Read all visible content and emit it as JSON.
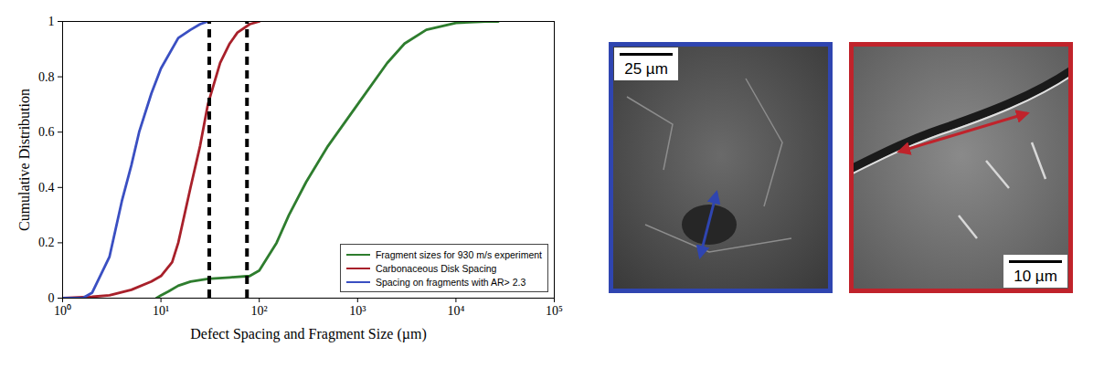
{
  "chart_data": {
    "type": "line",
    "x_label": "Defect Spacing and Fragment Size (µm)",
    "y_label": "Cumulative Distribution",
    "log": "x",
    "xlim": [
      1,
      100000
    ],
    "xticks": [
      {
        "value": 1,
        "label": "10⁰"
      },
      {
        "value": 10,
        "label": "10¹"
      },
      {
        "value": 100,
        "label": "10²"
      },
      {
        "value": 1000,
        "label": "10³"
      },
      {
        "value": 10000,
        "label": "10⁴"
      },
      {
        "value": 100000,
        "label": "10⁵"
      }
    ],
    "ylim": [
      0,
      1
    ],
    "yticks": [
      0,
      0.2,
      0.4,
      0.6,
      0.8,
      1
    ],
    "grid": false,
    "legend": "lower right",
    "series": [
      {
        "name": "Fragment sizes for 930 m/s experiment",
        "color": "#2e7d2e",
        "x": [
          9,
          10,
          12,
          15,
          20,
          30,
          50,
          80,
          100,
          150,
          200,
          300,
          500,
          1000,
          2000,
          3000,
          5000,
          10000,
          20000,
          27000
        ],
        "values": [
          0,
          0.01,
          0.025,
          0.045,
          0.06,
          0.07,
          0.075,
          0.08,
          0.1,
          0.2,
          0.3,
          0.42,
          0.55,
          0.7,
          0.85,
          0.92,
          0.97,
          0.995,
          1,
          1
        ]
      },
      {
        "name": "Carbonaceous Disk Spacing",
        "color": "#a8202a",
        "x": [
          1,
          2,
          3,
          5,
          8,
          10,
          13,
          15,
          20,
          25,
          30,
          40,
          50,
          60,
          80,
          100
        ],
        "values": [
          0,
          0.005,
          0.01,
          0.03,
          0.06,
          0.08,
          0.13,
          0.2,
          0.4,
          0.55,
          0.7,
          0.85,
          0.92,
          0.96,
          0.99,
          1
        ]
      },
      {
        "name": "Spacing on fragments with AR> 2.3",
        "color": "#3a4fc2",
        "x": [
          1,
          1.6,
          2,
          3,
          4,
          5,
          6,
          8,
          10,
          15,
          20,
          25,
          30
        ],
        "values": [
          0,
          0,
          0.02,
          0.15,
          0.35,
          0.48,
          0.6,
          0.74,
          0.83,
          0.94,
          0.97,
          0.99,
          1
        ]
      }
    ],
    "vlines": [
      31,
      75
    ]
  },
  "panels": [
    {
      "color": "#2f45b0",
      "scale_bar": "25 µm"
    },
    {
      "color": "#c0232b",
      "scale_bar": "10 µm"
    }
  ]
}
